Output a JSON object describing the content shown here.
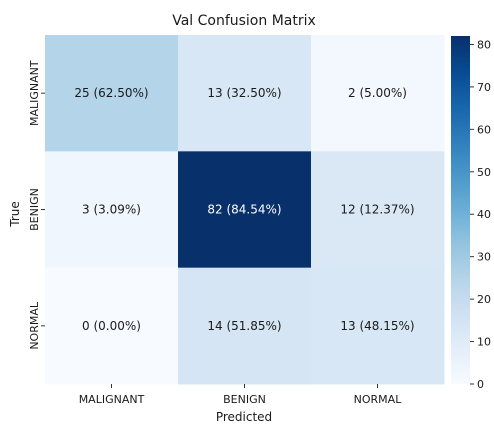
{
  "chart_data": {
    "type": "heatmap",
    "title": "Val Confusion Matrix",
    "xlabel": "Predicted",
    "ylabel": "True",
    "x_categories": [
      "MALIGNANT",
      "BENIGN",
      "NORMAL"
    ],
    "y_categories": [
      "MALIGNANT",
      "BENIGN",
      "NORMAL"
    ],
    "values": [
      [
        25,
        13,
        2
      ],
      [
        3,
        82,
        12
      ],
      [
        0,
        14,
        13
      ]
    ],
    "cell_labels": [
      [
        "25 (62.50%)",
        "13 (32.50%)",
        "2 (5.00%)"
      ],
      [
        "3 (3.09%)",
        "82 (84.54%)",
        "12 (12.37%)"
      ],
      [
        "0 (0.00%)",
        "14 (51.85%)",
        "13 (48.15%)"
      ]
    ],
    "colormap": "Blues",
    "colorbar": {
      "range": [
        0,
        82
      ],
      "ticks": [
        0,
        10,
        20,
        30,
        40,
        50,
        60,
        70,
        80
      ]
    }
  }
}
